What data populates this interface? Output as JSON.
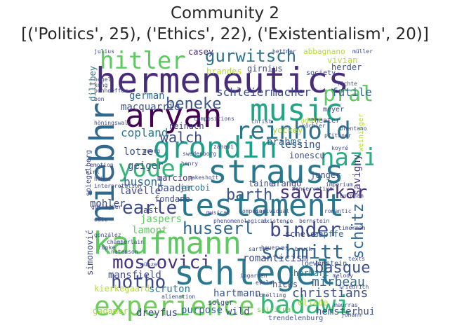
{
  "title": {
    "line1": "Community 2",
    "line2": "[('Politics', 25), ('Ethics', 22), ('Existentialism', 20)]"
  },
  "palette": {
    "dark_purple": "#440154",
    "indigo": "#3b528b",
    "blue": "#31688e",
    "teal": "#21908d",
    "green": "#35b779",
    "light_green": "#5ec962",
    "yellow_green": "#b5de2b"
  },
  "words": [
    {
      "text": "hermeneutics",
      "color": "#472c7a"
    },
    {
      "text": "hitler",
      "color": "#5ec962"
    },
    {
      "text": "gurwitsch",
      "color": "#2c728e"
    },
    {
      "text": "casey",
      "color": "#472d7b"
    },
    {
      "text": "abbagnano",
      "color": "#b5de2b"
    },
    {
      "text": "prall",
      "color": "#5ec962"
    },
    {
      "text": "aryan",
      "color": "#440154"
    },
    {
      "text": "music",
      "color": "#21a585"
    },
    {
      "text": "beneke",
      "color": "#3b528b"
    },
    {
      "text": "reinhold",
      "color": "#2c728e"
    },
    {
      "text": "niebhr",
      "color": "#31688e"
    },
    {
      "text": "grondin",
      "color": "#1f9e89"
    },
    {
      "text": "walch",
      "color": "#3e4989"
    },
    {
      "text": "nazi",
      "color": "#27ad81"
    },
    {
      "text": "strauss",
      "color": "#2a788e"
    },
    {
      "text": "yoder",
      "color": "#35b779"
    },
    {
      "text": "barth",
      "color": "#3b528b"
    },
    {
      "text": "savarkar",
      "color": "#46337e"
    },
    {
      "text": "testament",
      "color": "#2a788e"
    },
    {
      "text": "earle",
      "color": "#3e4989"
    },
    {
      "text": "husserl",
      "color": "#31688e"
    },
    {
      "text": "binder",
      "color": "#3e4989"
    },
    {
      "text": "schütz",
      "color": "#31688e"
    },
    {
      "text": "kaufmann",
      "color": "#5ec962"
    },
    {
      "text": "schmitt",
      "color": "#31688e"
    },
    {
      "text": "moscovici",
      "color": "#46337e"
    },
    {
      "text": "schlegel",
      "color": "#2a788e"
    },
    {
      "text": "basque",
      "color": "#3b528b"
    },
    {
      "text": "hotho",
      "color": "#3e4989"
    },
    {
      "text": "mirbeau",
      "color": "#31688e"
    },
    {
      "text": "experience",
      "color": "#6ccd5a"
    },
    {
      "text": "badawi",
      "color": "#35b779"
    },
    {
      "text": "christians",
      "color": "#3b528b"
    },
    {
      "text": "schleiermacher",
      "color": "#3e4989"
    },
    {
      "text": "futile",
      "color": "#31688e"
    },
    {
      "text": "macquarrie",
      "color": "#3b528b"
    },
    {
      "text": "german",
      "color": "#31688e"
    },
    {
      "text": "copland",
      "color": "#2a788e"
    },
    {
      "text": "lotze",
      "color": "#3e4989"
    },
    {
      "text": "geiger",
      "color": "#3b528b"
    },
    {
      "text": "busoni",
      "color": "#31688e"
    },
    {
      "text": "lessing",
      "color": "#3b528b"
    },
    {
      "text": "ionescu",
      "color": "#3e4989"
    },
    {
      "text": "savigny",
      "color": "#46337e"
    },
    {
      "text": "lavelle",
      "color": "#3e4989"
    },
    {
      "text": "baader",
      "color": "#3b528b"
    },
    {
      "text": "jaspers",
      "color": "#5ec962"
    },
    {
      "text": "mohler",
      "color": "#3e4989"
    },
    {
      "text": "lamont",
      "color": "#5ec962"
    },
    {
      "text": "mansfield",
      "color": "#3e4989"
    },
    {
      "text": "romanticism",
      "color": "#3e4989"
    },
    {
      "text": "zapffe",
      "color": "#31688e"
    },
    {
      "text": "scruton",
      "color": "#2a788e"
    },
    {
      "text": "hartmann",
      "color": "#3b528b"
    },
    {
      "text": "hicks",
      "color": "#3e4989"
    },
    {
      "text": "kierkegaard",
      "color": "#b5de2b"
    },
    {
      "text": "gadamer",
      "color": "#a0da39"
    },
    {
      "text": "dreyfus",
      "color": "#3e4989"
    },
    {
      "text": "purpose",
      "color": "#31688e"
    },
    {
      "text": "wild",
      "color": "#3e4989"
    },
    {
      "text": "hemsterhuis",
      "color": "#3b528b"
    },
    {
      "text": "dilthey",
      "color": "#2a788e"
    },
    {
      "text": "brahms",
      "color": "#31688e"
    },
    {
      "text": "girnius",
      "color": "#3e4989"
    },
    {
      "text": "brandes",
      "color": "#b5de2b"
    },
    {
      "text": "herder",
      "color": "#3b528b"
    },
    {
      "text": "vivian",
      "color": "#b5de2b"
    },
    {
      "text": "reinach",
      "color": "#3e4989"
    },
    {
      "text": "marcion",
      "color": "#46337e"
    },
    {
      "text": "jacobi",
      "color": "#2a788e"
    },
    {
      "text": "taine",
      "color": "#3e4989"
    },
    {
      "text": "arango",
      "color": "#3e4989"
    },
    {
      "text": "junger",
      "color": "#3e4989"
    },
    {
      "text": "fondane",
      "color": "#3e4989"
    },
    {
      "text": "ast",
      "color": "#3e4989"
    },
    {
      "text": "simonović",
      "color": "#3e4989"
    },
    {
      "text": "eliade",
      "color": "#b5de2b"
    },
    {
      "text": "herbart",
      "color": "#2a788e"
    },
    {
      "text": "loewenstein",
      "color": "#3b528b"
    },
    {
      "text": "scheler",
      "color": "#3e4989"
    },
    {
      "text": "yockey",
      "color": "#a0da39"
    },
    {
      "text": "solger",
      "color": "#3e4989"
    },
    {
      "text": "spiritual",
      "color": "#6ccd5a"
    },
    {
      "text": "trendelenburg",
      "color": "#3b528b"
    },
    {
      "text": "spiegelberg",
      "color": "#3e4989"
    },
    {
      "text": "society",
      "color": "#3e4989"
    },
    {
      "text": "theater",
      "color": "#3e4989"
    },
    {
      "text": "adolf",
      "color": "#b5de2b"
    },
    {
      "text": "meyer",
      "color": "#3e4989"
    },
    {
      "text": "weininger",
      "color": "#b5de2b"
    },
    {
      "text": "kong",
      "color": "#3e4989"
    },
    {
      "text": "bon",
      "color": "#3e4989"
    },
    {
      "text": "christ",
      "color": "#3e4989"
    },
    {
      "text": "conservative",
      "color": "#3e4989"
    },
    {
      "text": "gallagher",
      "color": "#3e4989"
    },
    {
      "text": "natanson",
      "color": "#3e4989"
    },
    {
      "text": "evola",
      "color": "#3e4989"
    },
    {
      "text": "johann",
      "color": "#3e4989"
    },
    {
      "text": "maurras",
      "color": "#3e4989"
    },
    {
      "text": "melody",
      "color": "#3e4989"
    },
    {
      "text": "friedrich",
      "color": "#3e4989"
    },
    {
      "text": "hauerwas",
      "color": "#3e4989"
    },
    {
      "text": "bruck",
      "color": "#3e4989"
    },
    {
      "text": "texts",
      "color": "#3e4989"
    },
    {
      "text": "ingarden",
      "color": "#3e4989"
    },
    {
      "text": "schelling",
      "color": "#3e4989"
    },
    {
      "text": "julius",
      "color": "#3e4989"
    },
    {
      "text": "müller",
      "color": "#3e4989"
    },
    {
      "text": "hettner",
      "color": "#3e4989"
    },
    {
      "text": "höhne",
      "color": "#3e4989"
    },
    {
      "text": "bonhoeffer",
      "color": "#3e4989"
    },
    {
      "text": "hegel",
      "color": "#3e4989"
    },
    {
      "text": "fichte",
      "color": "#3e4989"
    },
    {
      "text": "köchler",
      "color": "#3e4989"
    },
    {
      "text": "koyré",
      "color": "#3e4989"
    },
    {
      "text": "kirk",
      "color": "#3e4989"
    },
    {
      "text": "musical",
      "color": "#3e4989"
    },
    {
      "text": "individual",
      "color": "#3e4989"
    },
    {
      "text": "bernstein",
      "color": "#3e4989"
    },
    {
      "text": "phenomenological",
      "color": "#3e4989"
    },
    {
      "text": "cimerman",
      "color": "#3e4989"
    },
    {
      "text": "münzer",
      "color": "#3e4989"
    },
    {
      "text": "chamberlain",
      "color": "#3e4989"
    },
    {
      "text": "alienation",
      "color": "#3e4989"
    },
    {
      "text": "henry",
      "color": "#3e4989"
    },
    {
      "text": "oakeshott",
      "color": "#3e4989"
    },
    {
      "text": "emotion",
      "color": "#3e4989"
    },
    {
      "text": "imperium",
      "color": "#3e4989"
    },
    {
      "text": "burnham",
      "color": "#3e4989"
    },
    {
      "text": "höningswald",
      "color": "#3e4989"
    },
    {
      "text": "georg",
      "color": "#3e4989"
    },
    {
      "text": "swedenborg",
      "color": "#3e4989"
    },
    {
      "text": "zahavi",
      "color": "#3e4989"
    },
    {
      "text": "compositions",
      "color": "#3e4989"
    },
    {
      "text": "brentano",
      "color": "#3e4989"
    },
    {
      "text": "gonzález",
      "color": "#3e4989"
    },
    {
      "text": "röpke",
      "color": "#3e4989"
    },
    {
      "text": "edie",
      "color": "#3e4989"
    },
    {
      "text": "interpretation",
      "color": "#3e4989"
    },
    {
      "text": "romantic",
      "color": "#3e4989"
    },
    {
      "text": "existence",
      "color": "#3e4989"
    },
    {
      "text": "pfitzner",
      "color": "#3e4989"
    },
    {
      "text": "composer",
      "color": "#3e4989"
    },
    {
      "text": "sartre",
      "color": "#3e4989"
    }
  ]
}
